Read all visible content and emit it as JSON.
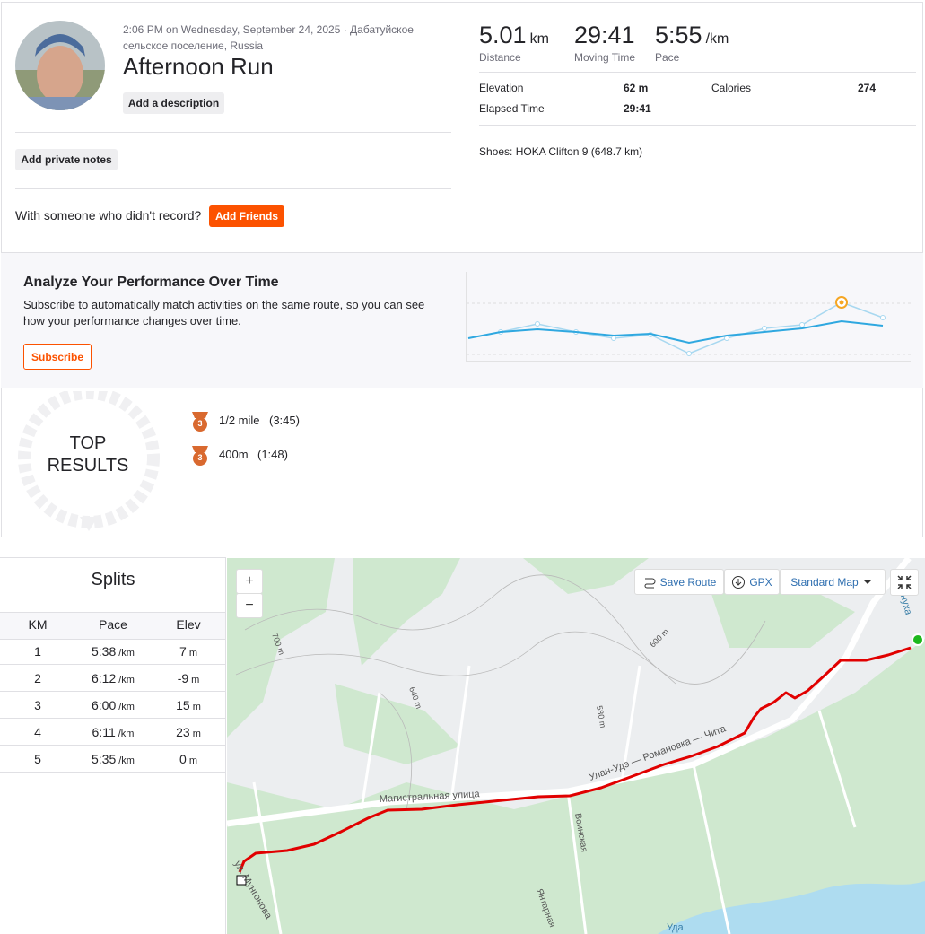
{
  "header": {
    "meta": "2:06 PM on Wednesday, September 24, 2025 · Дабатуйское сельское поселение, Russia",
    "title": "Afternoon Run",
    "add_description": "Add a description",
    "add_notes": "Add private notes",
    "friends_prompt": "With someone who didn't record?",
    "add_friends": "Add Friends"
  },
  "stats": {
    "primary": [
      {
        "value": "5.01",
        "unit": "km",
        "label": "Distance"
      },
      {
        "value": "29:41",
        "label": "Moving Time"
      },
      {
        "value": "5:55",
        "unit": "/km",
        "label": "Pace"
      }
    ],
    "secondary": [
      {
        "label": "Elevation",
        "value": "62 m"
      },
      {
        "label": "Calories",
        "value": "274"
      },
      {
        "label": "Elapsed Time",
        "value": "29:41"
      }
    ],
    "shoes": "Shoes: HOKA Clifton 9 (648.7 km)"
  },
  "analyze": {
    "title": "Analyze Your Performance Over Time",
    "text": "Subscribe to automatically match activities on the same route, so you can see how your performance changes over time.",
    "button": "Subscribe"
  },
  "top_results": {
    "title": "TOP RESULTS",
    "items": [
      {
        "medal": "3",
        "name": "1/2 mile",
        "time": "(3:45)"
      },
      {
        "medal": "3",
        "name": "400m",
        "time": "(1:48)"
      }
    ]
  },
  "splits": {
    "title": "Splits",
    "columns": [
      "KM",
      "Pace",
      "Elev"
    ],
    "rows": [
      {
        "km": "1",
        "pace": "5:38",
        "pace_unit": "/km",
        "elev": "7",
        "elev_unit": "m"
      },
      {
        "km": "2",
        "pace": "6:12",
        "pace_unit": "/km",
        "elev": "-9",
        "elev_unit": "m"
      },
      {
        "km": "3",
        "pace": "6:00",
        "pace_unit": "/km",
        "elev": "15",
        "elev_unit": "m"
      },
      {
        "km": "4",
        "pace": "6:11",
        "pace_unit": "/km",
        "elev": "23",
        "elev_unit": "m"
      },
      {
        "km": "5",
        "pace": "5:35",
        "pace_unit": "/km",
        "elev": "0",
        "elev_unit": "m"
      }
    ]
  },
  "map": {
    "zoom_in": "+",
    "zoom_out": "−",
    "save_route": "Save Route",
    "gpx": "GPX",
    "map_style": "Standard Map",
    "labels": {
      "street": "Магистральная улица",
      "highway": "Улан-Удэ — Романовка — Чита",
      "voinskaya": "Воинская",
      "yantarnaya": "Янтарная",
      "river": "Уда",
      "mungonova": "ул. Мунгонова",
      "gryaznukha": "Грязнуха",
      "c700": "700 m",
      "c640": "640 m",
      "c600": "600 m",
      "c580": "580 m"
    }
  }
}
